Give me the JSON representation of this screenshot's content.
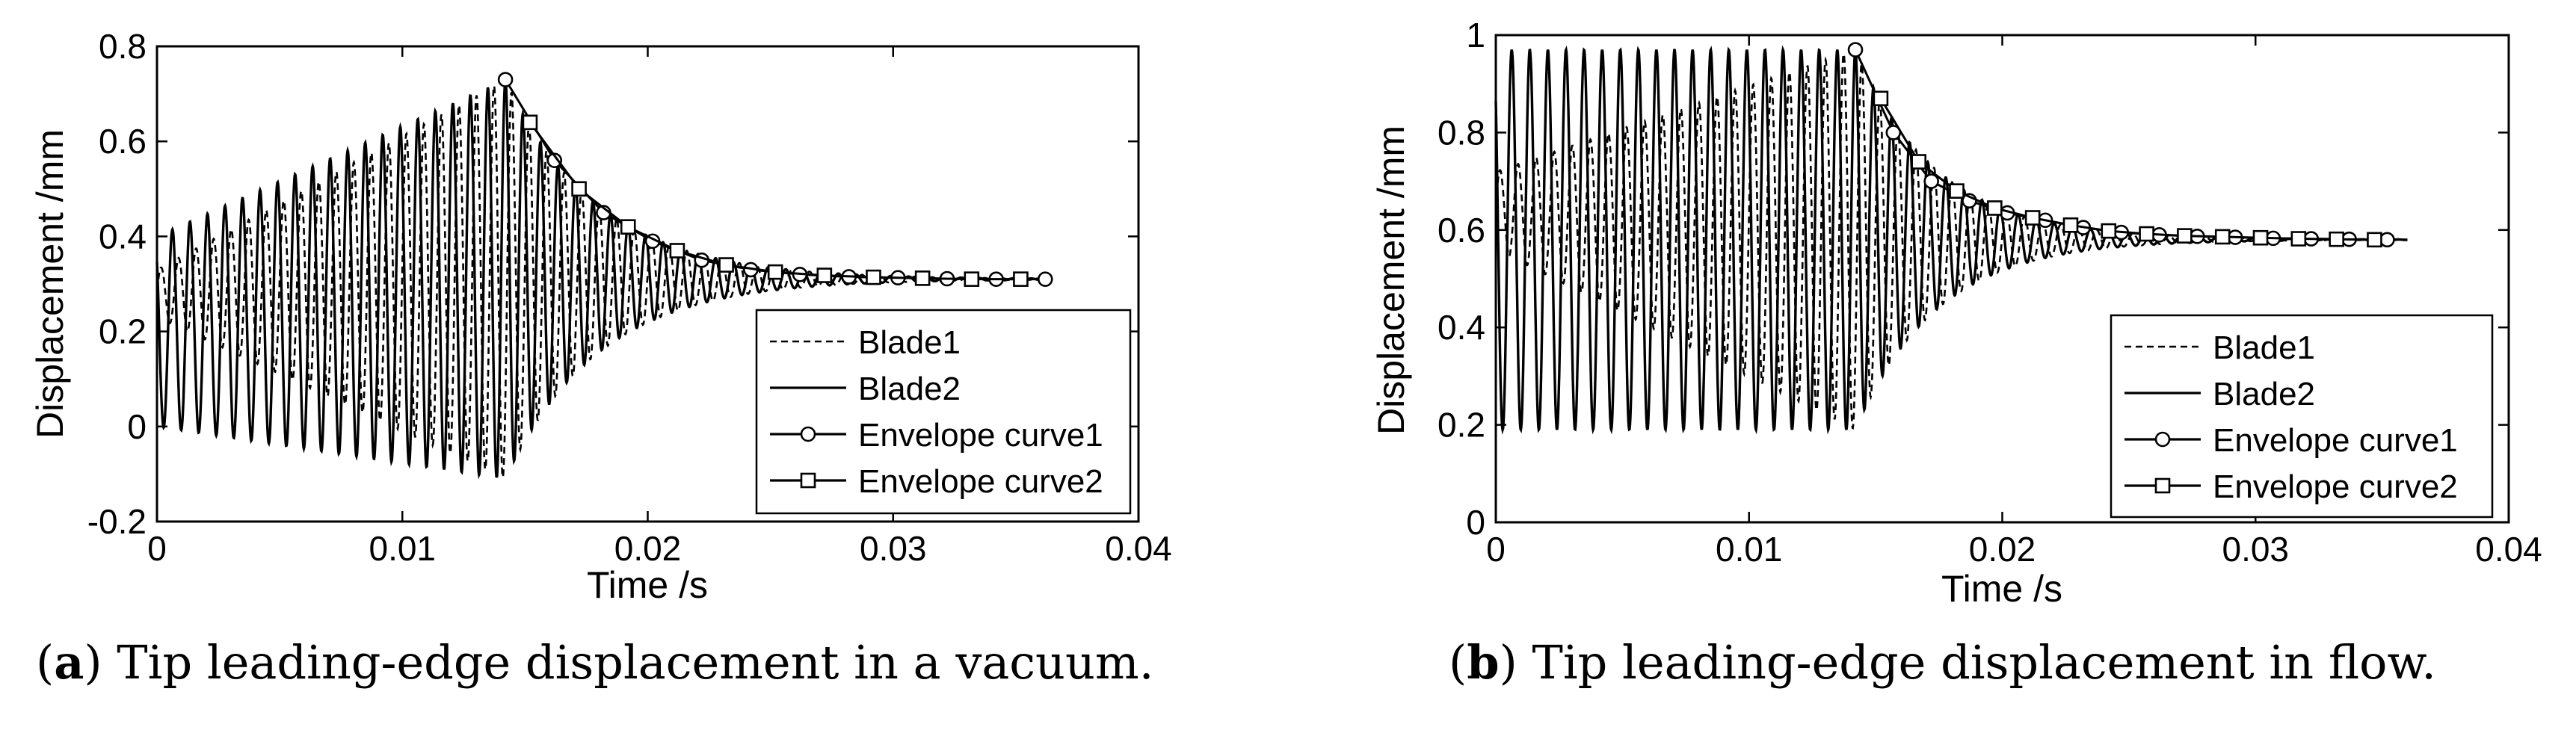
{
  "captions": [
    {
      "label": "a",
      "text": "Tip leading-edge displacement in a vacuum."
    },
    {
      "label": "b",
      "text": "Tip leading-edge displacement in flow."
    }
  ],
  "colors": {
    "line": "#000000",
    "background": "#ffffff"
  },
  "chart_data": [
    {
      "type": "line",
      "panel": "a",
      "xlabel": "Time /s",
      "ylabel": "Displacement /mm",
      "xlim": [
        0,
        0.04
      ],
      "ylim": [
        -0.2,
        0.8
      ],
      "xticks": [
        0,
        0.01,
        0.02,
        0.03,
        0.04
      ],
      "xtick_labels": [
        "0",
        "0.01",
        "0.02",
        "0.03",
        "0.04"
      ],
      "yticks": [
        -0.2,
        0,
        0.2,
        0.4,
        0.6,
        0.8
      ],
      "ytick_labels": [
        "-0.2",
        "0",
        "0.2",
        "0.4",
        "0.6",
        "0.8"
      ],
      "grid": false,
      "legend": "bottom-right",
      "series": [
        {
          "name": "Blade1",
          "style": "dashed",
          "model": {
            "freq": 1400,
            "phase_shift": 0.00025,
            "mean_start": 0.28,
            "mean_end": 0.31,
            "amp_start": 0.05,
            "amp_peak": 0.42,
            "t_peak": 0.0142,
            "t_end": 0.036,
            "decay": 0.0038,
            "ramp_power": 1.0
          }
        },
        {
          "name": "Blade2",
          "style": "solid",
          "model": {
            "freq": 1400,
            "phase_shift": 0.0,
            "mean_start": 0.2,
            "mean_end": 0.31,
            "amp_start": 0.2,
            "amp_peak": 0.42,
            "t_peak": 0.0142,
            "t_end": 0.036,
            "decay": 0.0038,
            "ramp_power": 1.0
          }
        },
        {
          "name": "Envelope curve1",
          "style": "solid-circle",
          "x": [
            0.0142,
            0.0162,
            0.0182,
            0.0202,
            0.0222,
            0.0242,
            0.0262,
            0.0282,
            0.0302,
            0.0322,
            0.0342,
            0.0362
          ],
          "y": [
            0.73,
            0.56,
            0.45,
            0.39,
            0.35,
            0.33,
            0.32,
            0.315,
            0.313,
            0.311,
            0.31,
            0.31
          ]
        },
        {
          "name": "Envelope curve2",
          "style": "solid-square",
          "x": [
            0.0152,
            0.0172,
            0.0192,
            0.0212,
            0.0232,
            0.0252,
            0.0272,
            0.0292,
            0.0312,
            0.0332,
            0.0352
          ],
          "y": [
            0.64,
            0.5,
            0.42,
            0.37,
            0.34,
            0.325,
            0.318,
            0.314,
            0.312,
            0.31,
            0.31
          ]
        }
      ]
    },
    {
      "type": "line",
      "panel": "b",
      "xlabel": "Time /s",
      "ylabel": "Displacement /mm",
      "xlim": [
        0,
        0.04
      ],
      "ylim": [
        0,
        1
      ],
      "xticks": [
        0,
        0.01,
        0.02,
        0.03,
        0.04
      ],
      "xtick_labels": [
        "0",
        "0.01",
        "0.02",
        "0.03",
        "0.04"
      ],
      "yticks": [
        0,
        0.2,
        0.4,
        0.6,
        0.8,
        1
      ],
      "ytick_labels": [
        "0",
        "0.2",
        "0.4",
        "0.6",
        "0.8",
        "1"
      ],
      "grid": false,
      "legend": "bottom-right",
      "series": [
        {
          "name": "Blade1",
          "style": "dashed",
          "model": {
            "freq": 1400,
            "phase_shift": 0.00025,
            "mean_start": 0.64,
            "mean_end": 0.58,
            "amp_start": 0.08,
            "amp_peak": 0.39,
            "t_peak": 0.0142,
            "t_end": 0.036,
            "decay": 0.0032,
            "ramp_power": 1.0
          }
        },
        {
          "name": "Blade2",
          "style": "solid",
          "model": {
            "freq": 1400,
            "phase_shift": 0.0,
            "mean_start": 0.58,
            "mean_end": 0.58,
            "amp_start": 0.39,
            "amp_peak": 0.39,
            "t_peak": 0.0142,
            "t_end": 0.036,
            "decay": 0.0032,
            "ramp_power": 1.0
          }
        },
        {
          "name": "Envelope curve1",
          "style": "solid-circle",
          "x": [
            0.0142,
            0.0157,
            0.0172,
            0.0187,
            0.0202,
            0.0217,
            0.0232,
            0.0247,
            0.0262,
            0.0277,
            0.0292,
            0.0307,
            0.0322,
            0.0337,
            0.0352
          ],
          "y": [
            0.97,
            0.8,
            0.7,
            0.66,
            0.635,
            0.62,
            0.605,
            0.595,
            0.59,
            0.587,
            0.585,
            0.583,
            0.582,
            0.581,
            0.58
          ]
        },
        {
          "name": "Envelope curve2",
          "style": "solid-square",
          "x": [
            0.0152,
            0.0167,
            0.0182,
            0.0197,
            0.0212,
            0.0227,
            0.0242,
            0.0257,
            0.0272,
            0.0287,
            0.0302,
            0.0317,
            0.0332,
            0.0347
          ],
          "y": [
            0.87,
            0.74,
            0.68,
            0.645,
            0.625,
            0.61,
            0.598,
            0.592,
            0.588,
            0.586,
            0.584,
            0.582,
            0.581,
            0.58
          ]
        }
      ]
    }
  ]
}
